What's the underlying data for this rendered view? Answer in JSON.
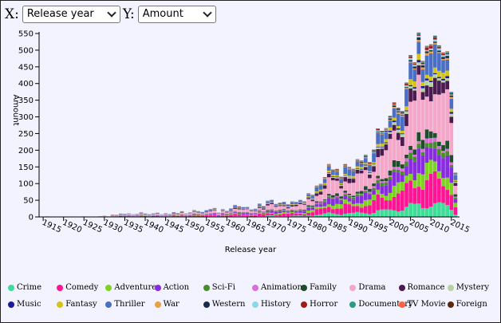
{
  "controls": {
    "x_label": "X:",
    "y_label": "Y:",
    "x_selected": "Release year",
    "y_selected": "Amount"
  },
  "chart_data": {
    "type": "bar",
    "stacked": true,
    "xlabel": "Release year",
    "ylabel": "Amount",
    "ylim": [
      0,
      550
    ],
    "y_ticks": [
      0,
      50,
      100,
      150,
      200,
      250,
      300,
      350,
      400,
      450,
      500,
      550
    ],
    "x_ticks": [
      1915,
      1920,
      1925,
      1930,
      1935,
      1940,
      1945,
      1950,
      1955,
      1960,
      1965,
      1970,
      1975,
      1980,
      1985,
      1990,
      1995,
      2000,
      2005,
      2010,
      2015
    ],
    "x_range": [
      1914,
      2017
    ],
    "grid": false,
    "legend_position": "bottom",
    "genres": [
      {
        "name": "Crime",
        "color": "#3ddc97"
      },
      {
        "name": "Comedy",
        "color": "#ff1493"
      },
      {
        "name": "Adventure",
        "color": "#7ed321"
      },
      {
        "name": "Action",
        "color": "#8a2be2"
      },
      {
        "name": "Sci-Fi",
        "color": "#4a8c2a"
      },
      {
        "name": "Animation",
        "color": "#da70d6"
      },
      {
        "name": "Family",
        "color": "#1e4d2b"
      },
      {
        "name": "Drama",
        "color": "#f4a7c8"
      },
      {
        "name": "Romance",
        "color": "#4b1a4e"
      },
      {
        "name": "Mystery",
        "color": "#b5d3a0"
      },
      {
        "name": "Music",
        "color": "#1a1aa0"
      },
      {
        "name": "Fantasy",
        "color": "#d4c41a"
      },
      {
        "name": "Thriller",
        "color": "#4a6fc4"
      },
      {
        "name": "War",
        "color": "#e8a040"
      },
      {
        "name": "Western",
        "color": "#1a2a4a"
      },
      {
        "name": "History",
        "color": "#8cd8e8"
      },
      {
        "name": "Horror",
        "color": "#a01a1a"
      },
      {
        "name": "Documentary",
        "color": "#2a9a8a"
      },
      {
        "name": "TV Movie",
        "color": "#ff6040"
      },
      {
        "name": "Foreign",
        "color": "#5a2a0a"
      }
    ],
    "years": [
      1916,
      1925,
      1927,
      1929,
      1930,
      1931,
      1932,
      1933,
      1934,
      1935,
      1936,
      1937,
      1938,
      1939,
      1940,
      1941,
      1942,
      1943,
      1944,
      1945,
      1946,
      1947,
      1948,
      1949,
      1950,
      1951,
      1952,
      1953,
      1954,
      1955,
      1956,
      1957,
      1958,
      1959,
      1960,
      1961,
      1962,
      1963,
      1964,
      1965,
      1966,
      1967,
      1968,
      1969,
      1970,
      1971,
      1972,
      1973,
      1974,
      1975,
      1976,
      1977,
      1978,
      1979,
      1980,
      1981,
      1982,
      1983,
      1984,
      1985,
      1986,
      1987,
      1988,
      1989,
      1990,
      1991,
      1992,
      1993,
      1994,
      1995,
      1996,
      1997,
      1998,
      1999,
      2000,
      2001,
      2002,
      2003,
      2004,
      2005,
      2006,
      2007,
      2008,
      2009,
      2010,
      2011,
      2012,
      2013,
      2014,
      2015,
      2016
    ],
    "totals": [
      2,
      2,
      1,
      2,
      4,
      2,
      8,
      7,
      10,
      9,
      10,
      8,
      10,
      15,
      11,
      8,
      10,
      12,
      8,
      12,
      10,
      15,
      11,
      16,
      10,
      14,
      22,
      19,
      16,
      20,
      22,
      25,
      13,
      25,
      20,
      27,
      35,
      30,
      28,
      30,
      24,
      27,
      42,
      32,
      45,
      48,
      39,
      46,
      50,
      40,
      45,
      42,
      48,
      47,
      76,
      73,
      98,
      96,
      110,
      148,
      142,
      154,
      132,
      165,
      145,
      133,
      162,
      169,
      200,
      180,
      210,
      256,
      238,
      249,
      303,
      369,
      358,
      330,
      388,
      447,
      434,
      553,
      502,
      560,
      537,
      523,
      474,
      462,
      497,
      403,
      145
    ],
    "shares": {
      "Crime": 0.07,
      "Comedy": 0.14,
      "Adventure": 0.07,
      "Action": 0.1,
      "Sci-Fi": 0.03,
      "Animation": 0.02,
      "Family": 0.04,
      "Drama": 0.25,
      "Romance": 0.07,
      "Mystery": 0.02,
      "Music": 0.01,
      "Fantasy": 0.03,
      "Thriller": 0.1,
      "War": 0.01,
      "Western": 0.01,
      "History": 0.01,
      "Horror": 0.01,
      "Documentary": 0.005,
      "TV Movie": 0.002,
      "Foreign": 0.003
    }
  }
}
